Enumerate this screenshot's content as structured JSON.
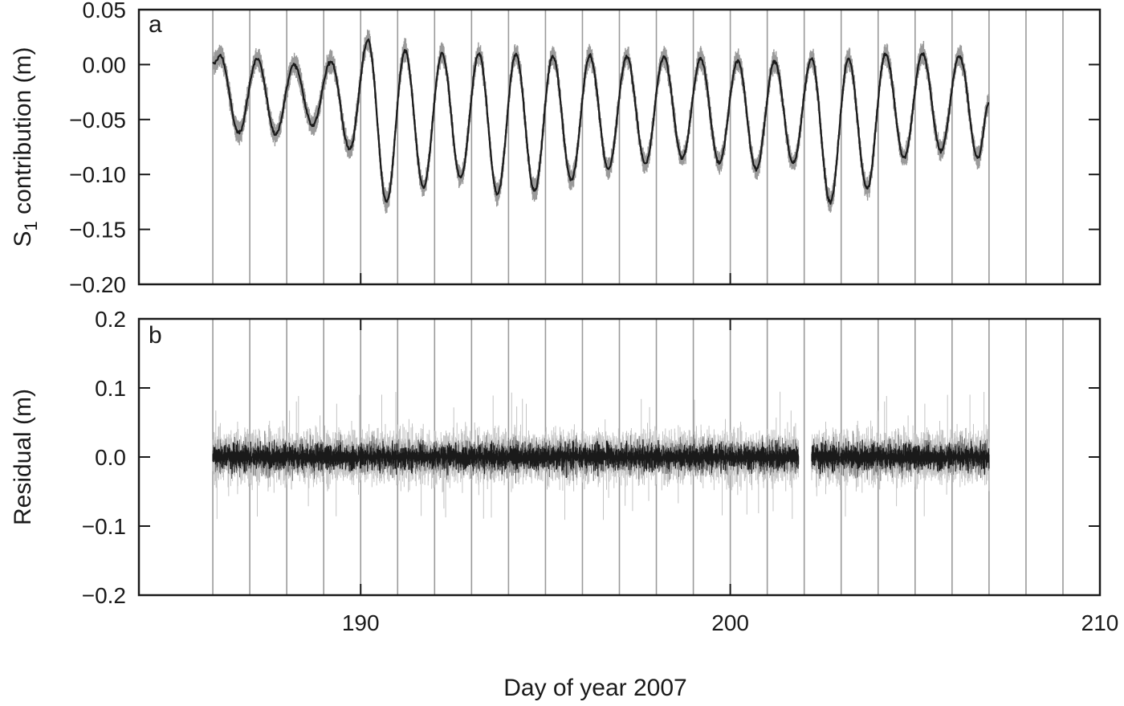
{
  "xlabel": "Day of year 2007",
  "chart_data": [
    {
      "type": "line",
      "panel_label": "a",
      "ylabel_main": "S",
      "ylabel_sub": "1",
      "ylabel_rest": " contribution (m)",
      "xlim": [
        184,
        210
      ],
      "ylim": [
        -0.2,
        0.05
      ],
      "yticks": [
        0.05,
        0.0,
        -0.05,
        -0.1,
        -0.15,
        -0.2
      ],
      "ytick_labels": [
        "0.05",
        "0.00",
        "−0.05",
        "−0.10",
        "−0.15",
        "−0.20"
      ],
      "xticks": [
        190,
        200,
        210
      ],
      "vertical_day_lines": [
        186,
        187,
        188,
        189,
        190,
        191,
        192,
        193,
        194,
        195,
        196,
        197,
        198,
        199,
        200,
        201,
        202,
        203,
        204,
        205,
        206,
        207,
        208,
        209
      ],
      "data_range_x": [
        186,
        207
      ],
      "series": [
        {
          "color_main": "#1a1a1a",
          "color_band": "#9a9a9a",
          "x": [
            186.0,
            186.2,
            186.7,
            187.2,
            187.7,
            188.2,
            188.7,
            189.2,
            189.7,
            190.2,
            190.7,
            191.2,
            191.7,
            192.2,
            192.7,
            193.2,
            193.7,
            194.2,
            194.7,
            195.2,
            195.7,
            196.2,
            196.7,
            197.2,
            197.7,
            198.2,
            198.7,
            199.2,
            199.7,
            200.2,
            200.7,
            201.2,
            201.7,
            202.2,
            202.7,
            203.2,
            203.7,
            204.2,
            204.7,
            205.2,
            205.7,
            206.2,
            206.7,
            207.0
          ],
          "y": [
            0.0,
            0.008,
            -0.062,
            0.005,
            -0.063,
            0.0,
            -0.055,
            0.003,
            -0.077,
            0.022,
            -0.125,
            0.012,
            -0.112,
            0.01,
            -0.103,
            0.01,
            -0.118,
            0.01,
            -0.115,
            0.008,
            -0.105,
            0.008,
            -0.095,
            0.007,
            -0.09,
            0.007,
            -0.085,
            0.005,
            -0.09,
            0.004,
            -0.095,
            0.003,
            -0.09,
            0.005,
            -0.125,
            0.005,
            -0.113,
            0.01,
            -0.085,
            0.01,
            -0.078,
            0.008,
            -0.085,
            -0.035
          ],
          "band_halfwidth": 0.008
        }
      ]
    },
    {
      "type": "line",
      "panel_label": "b",
      "ylabel": "Residual (m)",
      "xlim": [
        184,
        210
      ],
      "ylim": [
        -0.2,
        0.2
      ],
      "yticks": [
        0.2,
        0.1,
        0.0,
        -0.1,
        -0.2
      ],
      "ytick_labels": [
        "0.2",
        "0.1",
        "0.0",
        "−0.1",
        "−0.2"
      ],
      "xticks": [
        190,
        200,
        210
      ],
      "xtick_labels": [
        "190",
        "200",
        "210"
      ],
      "vertical_day_lines": [
        186,
        187,
        188,
        189,
        190,
        191,
        192,
        193,
        194,
        195,
        196,
        197,
        198,
        199,
        200,
        201,
        202,
        203,
        204,
        205,
        206,
        207,
        208,
        209
      ],
      "data_range_x": [
        186,
        207
      ],
      "gaps_x": [
        [
          201.85,
          202.2
        ]
      ],
      "series": [
        {
          "color_main": "#1a1a1a",
          "color_band": "#9a9a9a",
          "center": 0.0,
          "core_amplitude": 0.015,
          "noise_amplitude": 0.045,
          "max_spike": 0.095
        }
      ]
    }
  ]
}
